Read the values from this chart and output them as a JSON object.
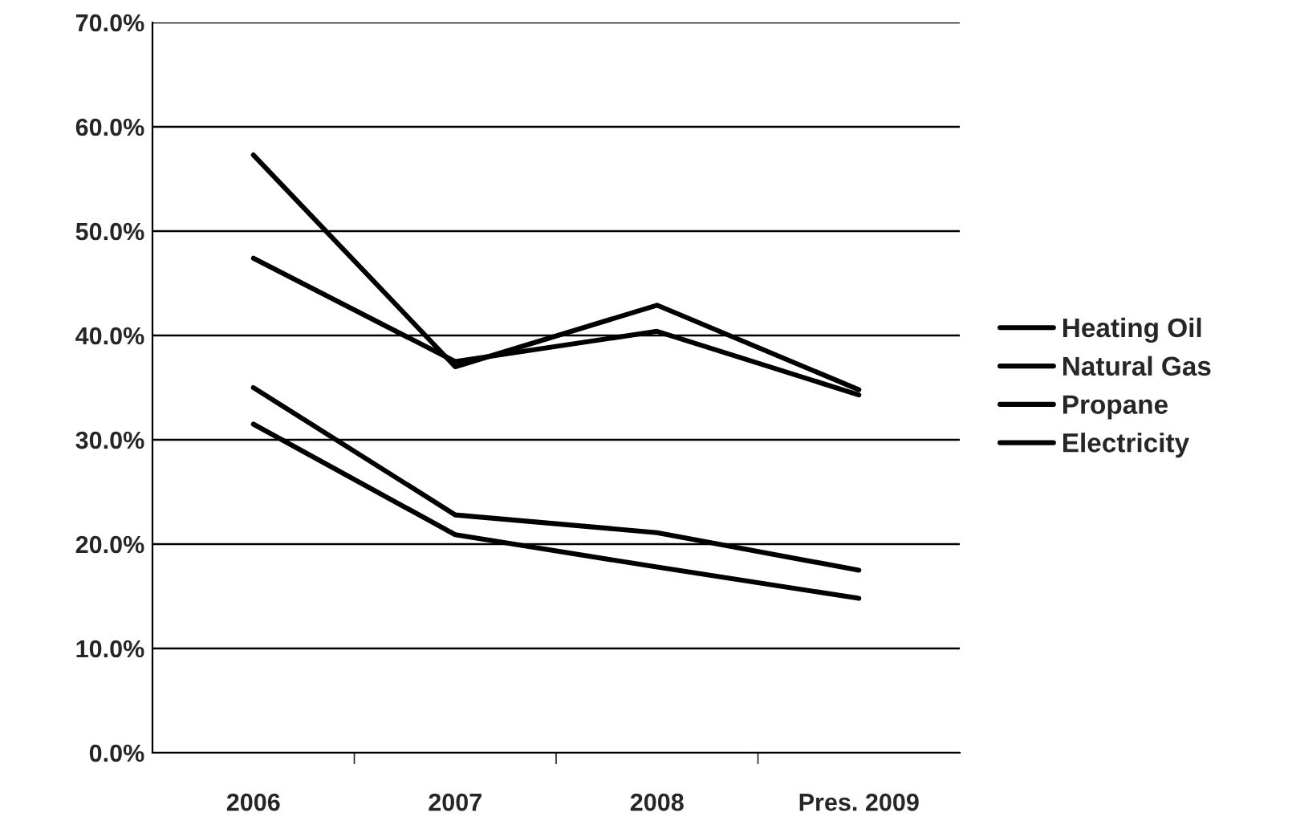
{
  "chart_data": {
    "type": "line",
    "categories": [
      "2006",
      "2007",
      "2008",
      "Pres. 2009"
    ],
    "series": [
      {
        "name": "Heating Oil",
        "color": "#000000",
        "values": [
          47.4,
          37.5,
          40.4,
          34.3
        ]
      },
      {
        "name": "Natural Gas",
        "color": "#000000",
        "values": [
          57.3,
          37.0,
          42.9,
          34.8
        ]
      },
      {
        "name": "Propane",
        "color": "#000000",
        "values": [
          35.0,
          22.8,
          21.1,
          17.5
        ]
      },
      {
        "name": "Electricity",
        "color": "#000000",
        "values": [
          31.5,
          20.9,
          17.8,
          14.8
        ]
      }
    ],
    "ylim": [
      0,
      70
    ],
    "yticks": [
      {
        "value": 0,
        "label": "0.0%"
      },
      {
        "value": 10,
        "label": "10.0%"
      },
      {
        "value": 20,
        "label": "20.0%"
      },
      {
        "value": 30,
        "label": "30.0%"
      },
      {
        "value": 40,
        "label": "40.0%"
      },
      {
        "value": 50,
        "label": "50.0%"
      },
      {
        "value": 60,
        "label": "60.0%"
      },
      {
        "value": 70,
        "label": "70.0%"
      }
    ],
    "grid": "y",
    "legend": "right",
    "marker": "none",
    "line_style": "solid"
  }
}
